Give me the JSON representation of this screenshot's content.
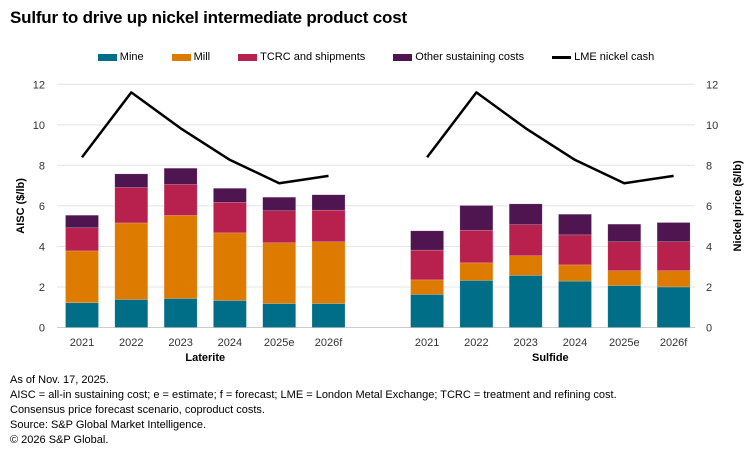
{
  "title": "Sulfur to drive up nickel intermediate product cost",
  "chart_data": {
    "type": "bar",
    "stacked": true,
    "groups": [
      {
        "label": "Laterite",
        "categories": [
          "2021",
          "2022",
          "2023",
          "2024",
          "2025e",
          "2026f"
        ]
      },
      {
        "label": "Sulfide",
        "categories": [
          "2021",
          "2022",
          "2023",
          "2024",
          "2025e",
          "2026f"
        ]
      }
    ],
    "series": [
      {
        "name": "Mine",
        "color": "#006e87",
        "values": [
          [
            1.22,
            1.38,
            1.43,
            1.33,
            1.18,
            1.18
          ],
          [
            1.63,
            2.32,
            2.57,
            2.29,
            2.07,
            2.0
          ]
        ]
      },
      {
        "name": "Mill",
        "color": "#dd7a00",
        "values": [
          [
            2.56,
            3.78,
            4.1,
            3.34,
            3.0,
            3.05
          ],
          [
            0.72,
            0.87,
            0.97,
            0.8,
            0.73,
            0.8
          ]
        ]
      },
      {
        "name": "TCRC and shipments",
        "color": "#b8204e",
        "values": [
          [
            1.14,
            1.75,
            1.53,
            1.51,
            1.58,
            1.56
          ],
          [
            1.47,
            1.61,
            1.53,
            1.48,
            1.43,
            1.43
          ]
        ]
      },
      {
        "name": "Other sustaining costs",
        "color": "#4f1550",
        "values": [
          [
            0.62,
            0.67,
            0.8,
            0.69,
            0.67,
            0.76
          ],
          [
            0.95,
            1.22,
            1.03,
            1.02,
            0.87,
            0.95
          ]
        ]
      }
    ],
    "line_series": {
      "name": "LME nickel cash",
      "color": "#000000",
      "axis": "right",
      "values": [
        [
          8.4,
          11.6,
          9.83,
          8.27,
          7.12,
          7.48
        ],
        [
          8.4,
          11.6,
          9.83,
          8.27,
          7.12,
          7.48
        ]
      ]
    },
    "ylabel": "AISC ($/lb)",
    "y2label": "Nickel price ($/lb)",
    "ylim": [
      0,
      12
    ],
    "y2lim": [
      0,
      12
    ],
    "yticks": [
      "0",
      "2",
      "4",
      "6",
      "8",
      "10",
      "12"
    ],
    "grid": true,
    "legend": "top"
  },
  "notes": [
    "As of Nov. 17, 2025.",
    "AISC = all-in sustaining cost; e = estimate; f = forecast; LME = London Metal Exchange; TCRC = treatment and refining cost.",
    "Consensus price forecast scenario, coproduct costs.",
    "Source: S&P Global Market Intelligence.",
    "© 2026 S&P Global."
  ]
}
